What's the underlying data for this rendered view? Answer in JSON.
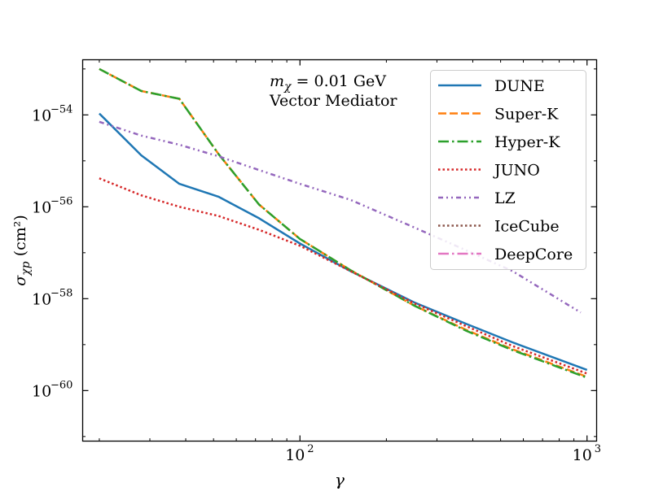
{
  "chart_data": {
    "type": "line",
    "x_scale": "log",
    "y_scale": "log",
    "xlabel": "γ",
    "ylabel": "σχp (cm²)",
    "xlim": [
      17.5,
      1080
    ],
    "ylim_log10": [
      -61.1,
      -52.8
    ],
    "x_ticks": [
      {
        "value": 100,
        "base": "10",
        "exp": "2"
      },
      {
        "value": 1000,
        "base": "10",
        "exp": "3"
      }
    ],
    "y_ticks": [
      {
        "value_log10": -54,
        "base": "10",
        "exp": "−54"
      },
      {
        "value_log10": -56,
        "base": "10",
        "exp": "−56"
      },
      {
        "value_log10": -58,
        "base": "10",
        "exp": "−58"
      },
      {
        "value_log10": -60,
        "base": "10",
        "exp": "−60"
      }
    ],
    "annotation": {
      "line1": "mχ = 0.01 GeV",
      "line2": "Vector Mediator"
    },
    "series": [
      {
        "name": "DUNE",
        "color": "#1f77b4",
        "dash": "solid",
        "x": [
          20,
          28,
          38,
          52,
          72,
          100,
          150,
          250,
          380,
          550,
          1000
        ],
        "y_log10": [
          -53.97,
          -54.88,
          -55.5,
          -55.78,
          -56.25,
          -56.8,
          -57.4,
          -58.08,
          -58.55,
          -58.95,
          -59.55
        ]
      },
      {
        "name": "Super-K",
        "color": "#ff7f0e",
        "dash": "dashed",
        "x": [
          20,
          28,
          38,
          52,
          72,
          100,
          150,
          250,
          380,
          550,
          1000
        ],
        "y_log10": [
          -53.0,
          -53.48,
          -53.65,
          -54.85,
          -55.95,
          -56.7,
          -57.38,
          -58.15,
          -58.68,
          -59.1,
          -59.7
        ]
      },
      {
        "name": "Hyper-K",
        "color": "#2ca02c",
        "dash": "dashdot",
        "x": [
          20,
          28,
          38,
          52,
          72,
          100,
          150,
          250,
          380,
          550,
          1000
        ],
        "y_log10": [
          -53.0,
          -53.48,
          -53.65,
          -54.85,
          -55.95,
          -56.7,
          -57.38,
          -58.15,
          -58.7,
          -59.12,
          -59.72
        ]
      },
      {
        "name": "JUNO",
        "color": "#d62728",
        "dash": "dotted",
        "x": [
          20,
          28,
          38,
          52,
          72,
          100,
          150,
          250,
          380,
          550,
          1000
        ],
        "y_log10": [
          -55.38,
          -55.75,
          -56.0,
          -56.2,
          -56.5,
          -56.85,
          -57.4,
          -58.1,
          -58.6,
          -59.03,
          -59.63
        ]
      },
      {
        "name": "LZ",
        "color": "#9467bd",
        "dash": "densedashdot",
        "x": [
          20,
          28,
          38,
          52,
          72,
          100,
          150,
          250,
          380,
          550,
          950
        ],
        "y_log10": [
          -54.15,
          -54.45,
          -54.65,
          -54.9,
          -55.2,
          -55.5,
          -55.85,
          -56.45,
          -56.95,
          -57.4,
          -58.3
        ]
      },
      {
        "name": "IceCube",
        "color": "#8c564b",
        "dash": "dotted",
        "x": [],
        "y_log10": []
      },
      {
        "name": "DeepCore",
        "color": "#e377c2",
        "dash": "dashdot",
        "x": [],
        "y_log10": []
      }
    ]
  }
}
